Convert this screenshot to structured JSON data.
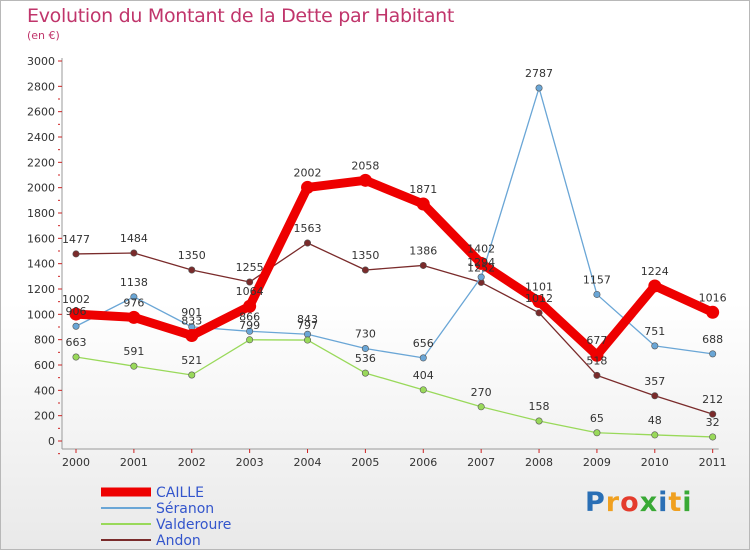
{
  "header": {
    "title": "Evolution du Montant de la Dette par Habitant",
    "subtitle": "(en €)"
  },
  "logo": {
    "letters": [
      "P",
      "r",
      "o",
      "x",
      "i",
      "t",
      "i"
    ],
    "colors": [
      "#2a6fb5",
      "#f0a020",
      "#e43b2c",
      "#39a935",
      "#2a6fb5",
      "#f0a020",
      "#39a935"
    ]
  },
  "chart_data": {
    "type": "line",
    "title": "Evolution du Montant de la Dette par Habitant",
    "subtitle": "(en €)",
    "xlabel": "",
    "ylabel": "",
    "x": [
      "2000",
      "2001",
      "2002",
      "2003",
      "2004",
      "2005",
      "2006",
      "2007",
      "2008",
      "2009",
      "2010",
      "2011"
    ],
    "ylim": [
      0,
      3000
    ],
    "yticks": [
      0,
      200,
      400,
      600,
      800,
      1000,
      1200,
      1400,
      1600,
      1800,
      2000,
      2200,
      2400,
      2600,
      2800,
      3000
    ],
    "grid": false,
    "legend": "bottom-left",
    "series": [
      {
        "name": "CAILLE",
        "color": "#ee0000",
        "values": [
          1002,
          976,
          833,
          1064,
          2002,
          2058,
          1871,
          1402,
          1101,
          677,
          1224,
          1016
        ]
      },
      {
        "name": "Séranon",
        "color": "#6aa6d6",
        "values": [
          906,
          1138,
          901,
          866,
          843,
          730,
          656,
          1294,
          2787,
          1157,
          751,
          688
        ]
      },
      {
        "name": "Valderoure",
        "color": "#99d95a",
        "values": [
          663,
          591,
          521,
          799,
          797,
          536,
          404,
          270,
          158,
          65,
          48,
          32
        ]
      },
      {
        "name": "Andon",
        "color": "#7a2b2b",
        "values": [
          1477,
          1484,
          1350,
          1255,
          1563,
          1350,
          1386,
          1252,
          1012,
          518,
          357,
          212
        ]
      }
    ]
  }
}
